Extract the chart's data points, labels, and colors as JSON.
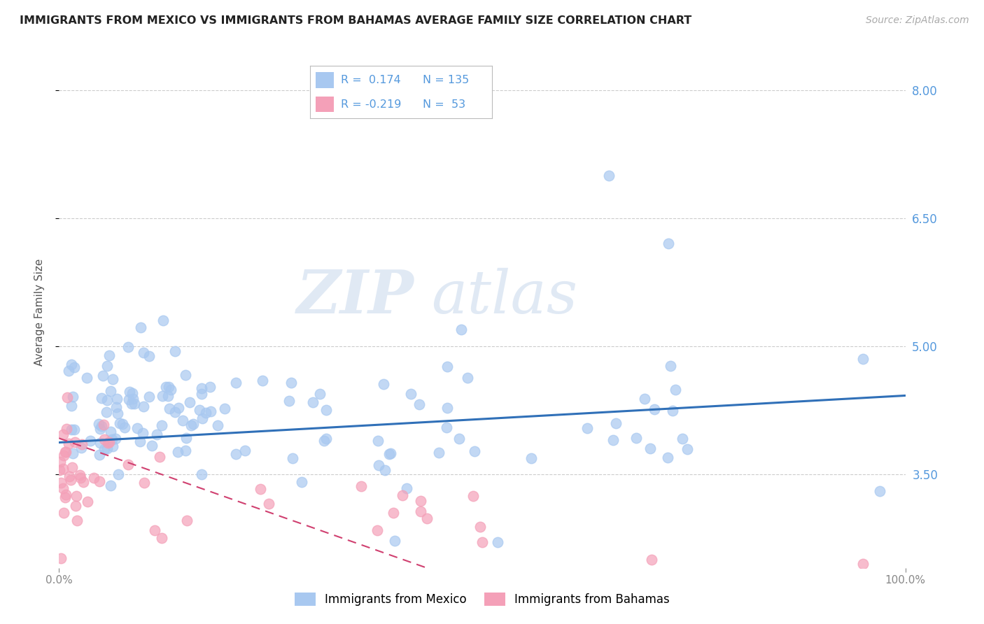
{
  "title": "IMMIGRANTS FROM MEXICO VS IMMIGRANTS FROM BAHAMAS AVERAGE FAMILY SIZE CORRELATION CHART",
  "source_text": "Source: ZipAtlas.com",
  "ylabel": "Average Family Size",
  "xlim": [
    0.0,
    1.0
  ],
  "ylim": [
    2.4,
    8.4
  ],
  "yticks": [
    3.5,
    5.0,
    6.5,
    8.0
  ],
  "xtick_labels": [
    "0.0%",
    "100.0%"
  ],
  "color_mexico": "#a8c8f0",
  "color_bahamas": "#f4a0b8",
  "line_color_mexico": "#3070b8",
  "line_color_bahamas": "#d04070",
  "watermark_zip": "ZIP",
  "watermark_atlas": "atlas",
  "background_color": "#ffffff",
  "grid_color": "#cccccc",
  "tick_color": "#888888",
  "label_color": "#555555",
  "right_tick_color": "#5599dd",
  "title_color": "#222222"
}
